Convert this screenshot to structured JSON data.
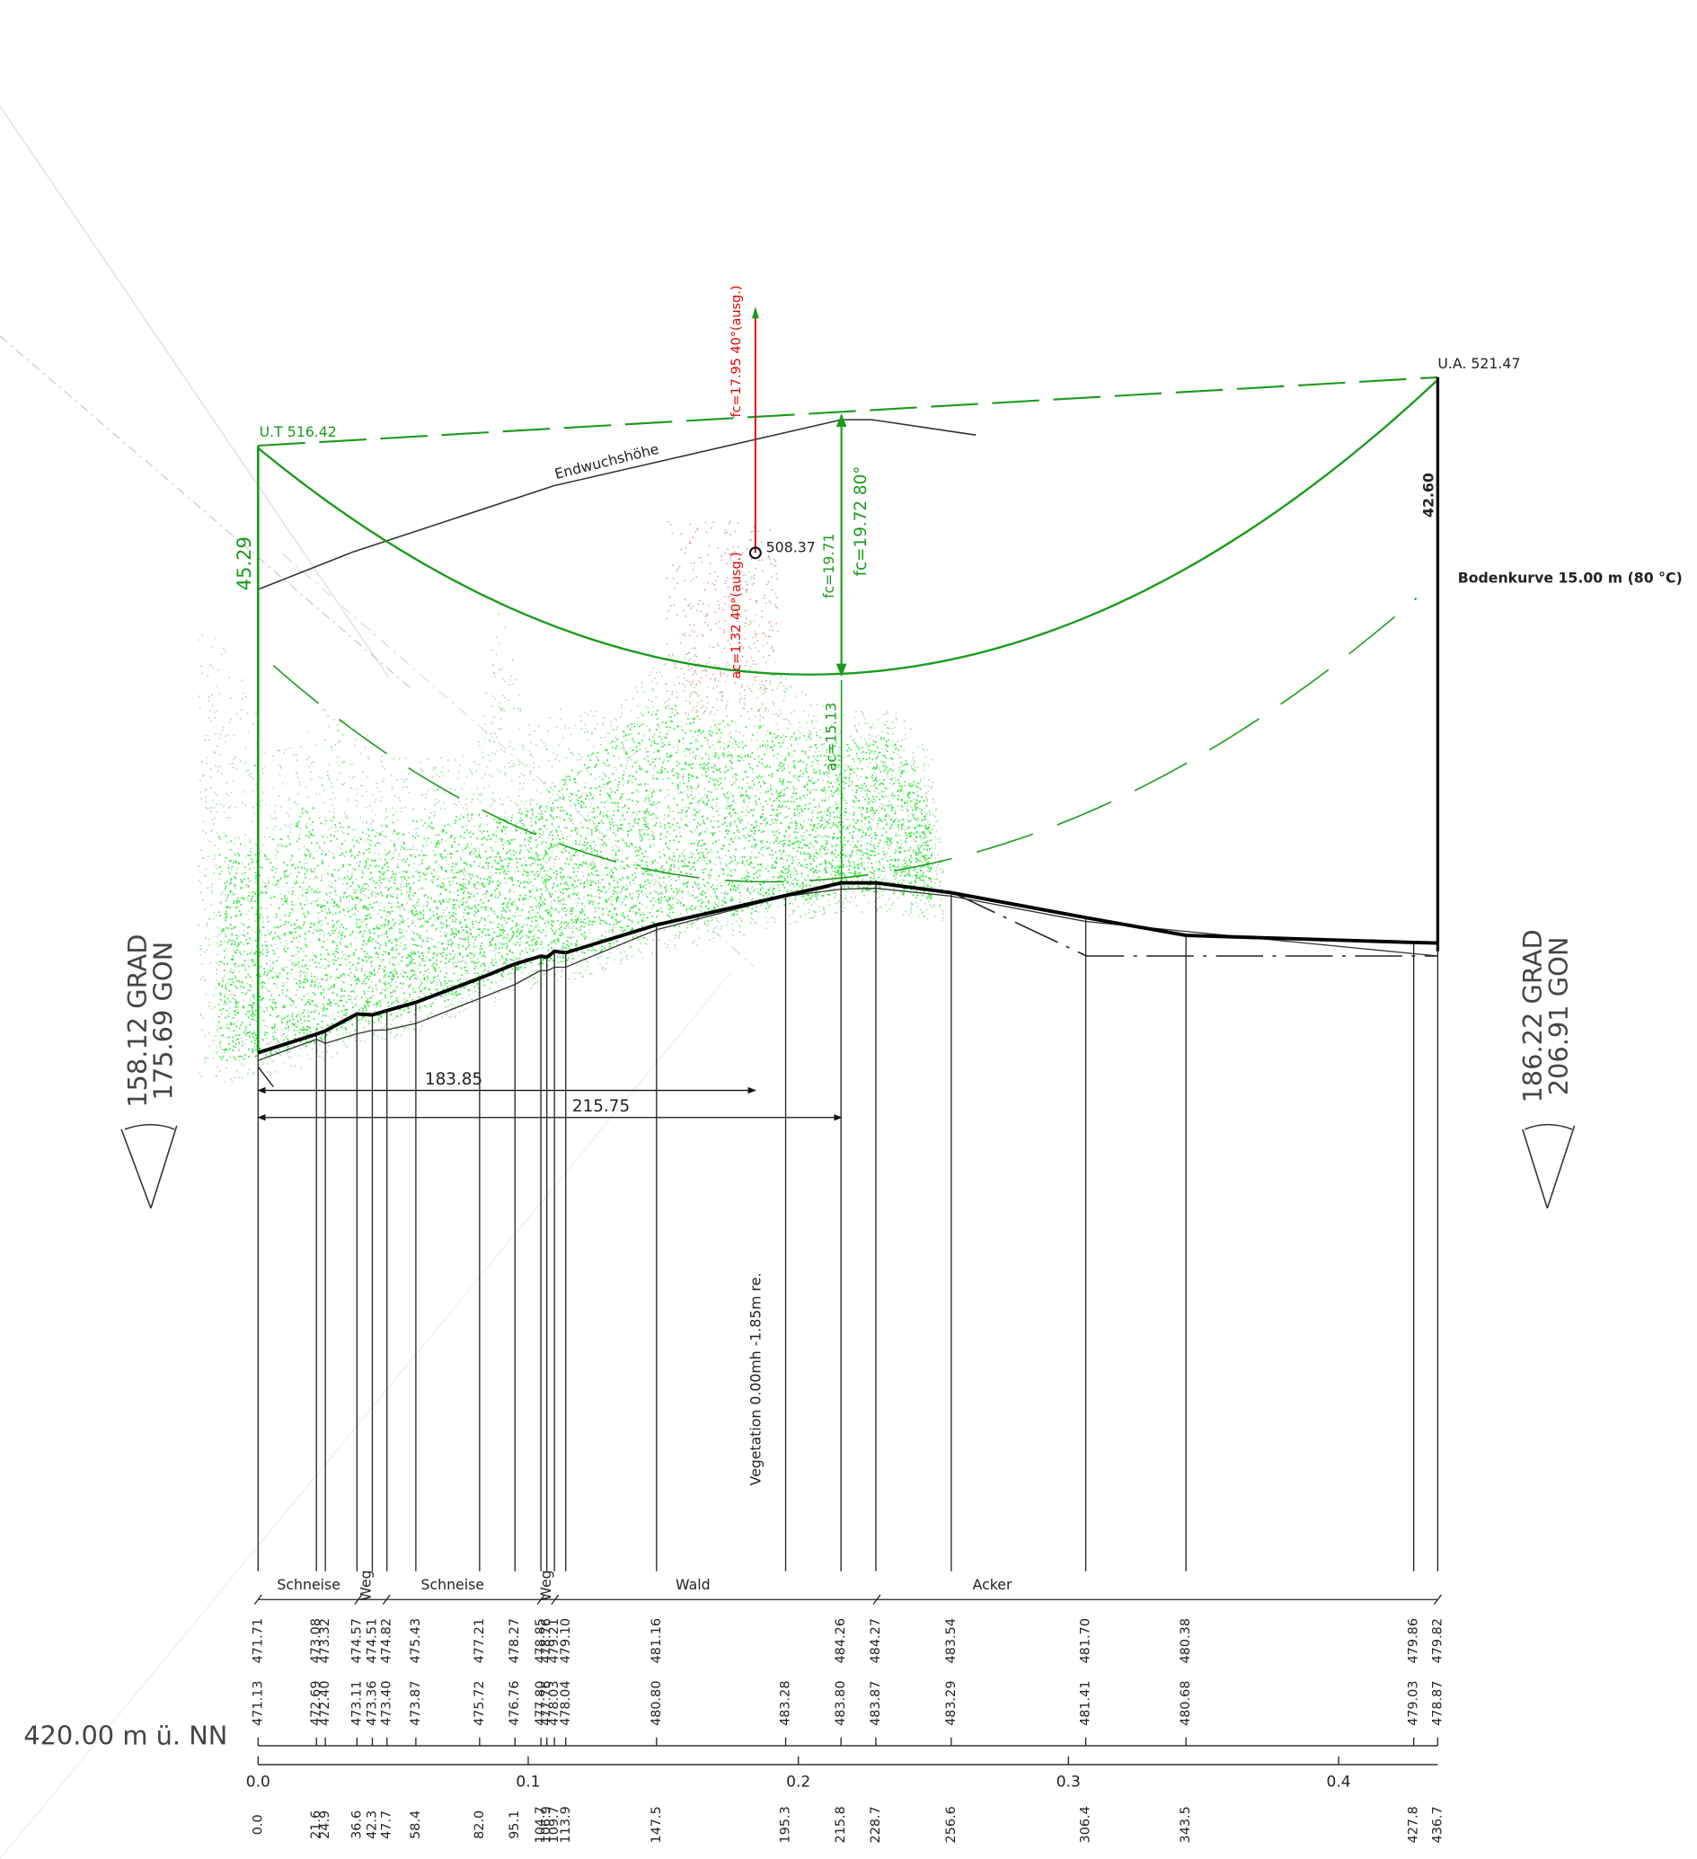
{
  "towers": {
    "left": {
      "label": "U.T 516.42",
      "height": "45.29",
      "angle_grad": "158.12 GRAD",
      "angle_gon": "175.69 GON"
    },
    "right": {
      "label": "U.A. 521.47",
      "height": "42.60",
      "angle_grad": "186.22 GRAD",
      "angle_gon": "206.91 GON"
    }
  },
  "annotations": {
    "growth_line": "Endwuchshöhe",
    "soil_curve": "Bodenkurve 15.00 m (80 °C)",
    "vegetation": "Vegetation 0.00mh -1.85m re.",
    "reference_height": "420.00 m ü. NN"
  },
  "critical_point": {
    "height": "508.37",
    "fc": "fc=17.95 40°(ausg.)",
    "ac": "ac=1.32 40°(ausg.)",
    "distance": "183.85"
  },
  "max_sag": {
    "fc": "fc=19.71",
    "fc_80": "fc=19.72 80°",
    "ac": "ac=15.13",
    "distance": "215.75"
  },
  "land_use": [
    "Schneise",
    "Weg",
    "Schneise",
    "Weg",
    "Wald",
    "Acker"
  ],
  "stations": [
    {
      "upper": "471.71",
      "lower": "471.13",
      "station": "0.0"
    },
    {
      "upper": "473.08",
      "lower": "472.69",
      "station": "21.6"
    },
    {
      "upper": "473.32",
      "lower": "472.40",
      "station": "24.9"
    },
    {
      "upper": "474.57",
      "lower": "473.11",
      "station": "36.6"
    },
    {
      "upper": "474.51",
      "lower": "473.36",
      "station": "42.3"
    },
    {
      "upper": "474.82",
      "lower": "473.40",
      "station": "47.7"
    },
    {
      "upper": "475.43",
      "lower": "473.87",
      "station": "58.4"
    },
    {
      "upper": "477.21",
      "lower": "475.72",
      "station": "82.0"
    },
    {
      "upper": "478.27",
      "lower": "476.76",
      "station": "95.1"
    },
    {
      "upper": "478.85",
      "lower": "477.80",
      "station": "104.7"
    },
    {
      "upper": "478.76",
      "lower": "477.76",
      "station": "106.9"
    },
    {
      "upper": "479.21",
      "lower": "478.03",
      "station": "109.7"
    },
    {
      "upper": "479.10",
      "lower": "478.04",
      "station": "113.9"
    },
    {
      "upper": "481.16",
      "lower": "480.80",
      "station": "147.5"
    },
    {
      "lower": "483.28",
      "station": "195.3"
    },
    {
      "upper": "484.26",
      "lower": "483.80",
      "station": "215.8"
    },
    {
      "upper": "484.27",
      "lower": "483.87",
      "station": "228.7"
    },
    {
      "upper": "483.54",
      "lower": "483.29",
      "station": "256.6"
    },
    {
      "upper": "481.70",
      "lower": "481.41",
      "station": "306.4"
    },
    {
      "upper": "480.38",
      "lower": "480.68",
      "station": "343.5"
    },
    {
      "upper": "479.86",
      "lower": "479.03",
      "station": "427.8"
    },
    {
      "upper": "479.82",
      "lower": "478.87",
      "station": "436.7"
    }
  ],
  "km_axis": [
    "0.0",
    "0.1",
    "0.2",
    "0.3",
    "0.4"
  ]
}
